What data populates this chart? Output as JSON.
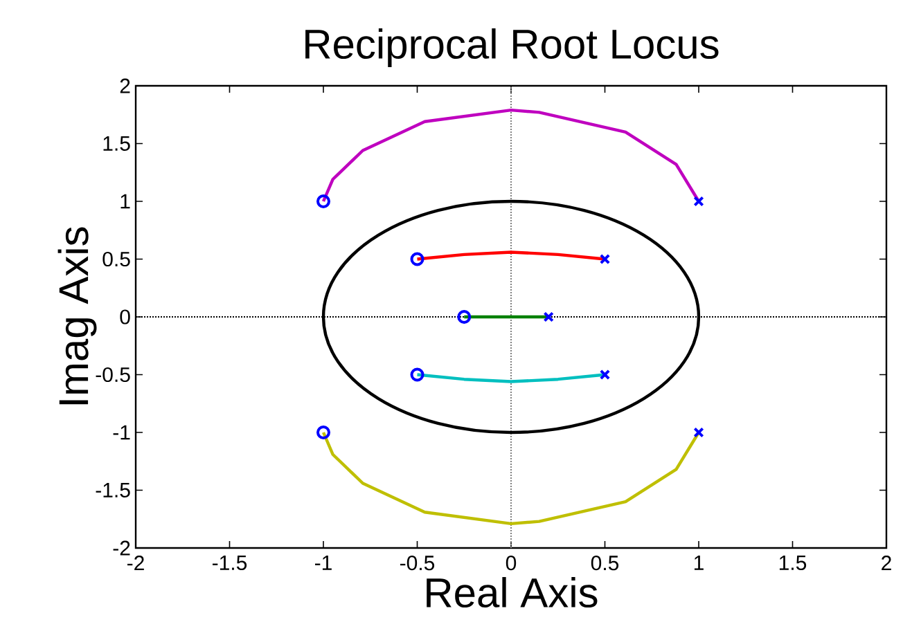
{
  "chart_data": {
    "type": "line",
    "title": "Reciprocal Root Locus",
    "xlabel": "Real Axis",
    "ylabel": "Imag Axis",
    "xlim": [
      -2,
      2
    ],
    "ylim": [
      -2,
      2
    ],
    "xticks": [
      -2,
      -1.5,
      -1,
      -0.5,
      0,
      0.5,
      1,
      1.5,
      2
    ],
    "yticks": [
      -2,
      -1.5,
      -1,
      -0.5,
      0,
      0.5,
      1,
      1.5,
      2
    ],
    "series": [
      {
        "color": "#bf00bf",
        "x": [
          -1,
          -0.95,
          -0.79,
          -0.46,
          0,
          0.15,
          0.61,
          0.88,
          1
        ],
        "values": [
          1,
          1.19,
          1.44,
          1.69,
          1.79,
          1.77,
          1.6,
          1.32,
          1
        ]
      },
      {
        "color": "#ff0000",
        "x": [
          -0.5,
          -0.25,
          0,
          0.25,
          0.5
        ],
        "values": [
          0.5,
          0.54,
          0.56,
          0.54,
          0.5
        ]
      },
      {
        "color": "#008000",
        "x": [
          -0.25,
          0.2
        ],
        "values": [
          0,
          0
        ]
      },
      {
        "color": "#00bfbf",
        "x": [
          -0.5,
          -0.25,
          0,
          0.25,
          0.5
        ],
        "values": [
          -0.5,
          -0.54,
          -0.56,
          -0.54,
          -0.5
        ]
      },
      {
        "color": "#bfbf00",
        "x": [
          -1,
          -0.95,
          -0.79,
          -0.46,
          0,
          0.15,
          0.61,
          0.88,
          1
        ],
        "values": [
          -1,
          -1.19,
          -1.44,
          -1.69,
          -1.79,
          -1.77,
          -1.6,
          -1.32,
          -1
        ]
      },
      {
        "type": "scatter",
        "marker": "circle",
        "color": "#0000ff",
        "x": [
          -1,
          -1,
          -0.5,
          -0.5,
          -0.25
        ],
        "values": [
          1,
          -1,
          0.5,
          -0.5,
          0
        ]
      },
      {
        "type": "scatter",
        "marker": "cross",
        "color": "#0000ff",
        "x": [
          1,
          1,
          0.5,
          0.5,
          0.2
        ],
        "values": [
          1,
          -1,
          0.5,
          -0.5,
          0
        ]
      }
    ],
    "ref_lines": [
      {
        "axis": "x",
        "value": 0,
        "color": "#808080",
        "line_style": "dotted"
      },
      {
        "axis": "y",
        "value": 0,
        "color": "#000000",
        "line_style": "dotted"
      }
    ]
  }
}
